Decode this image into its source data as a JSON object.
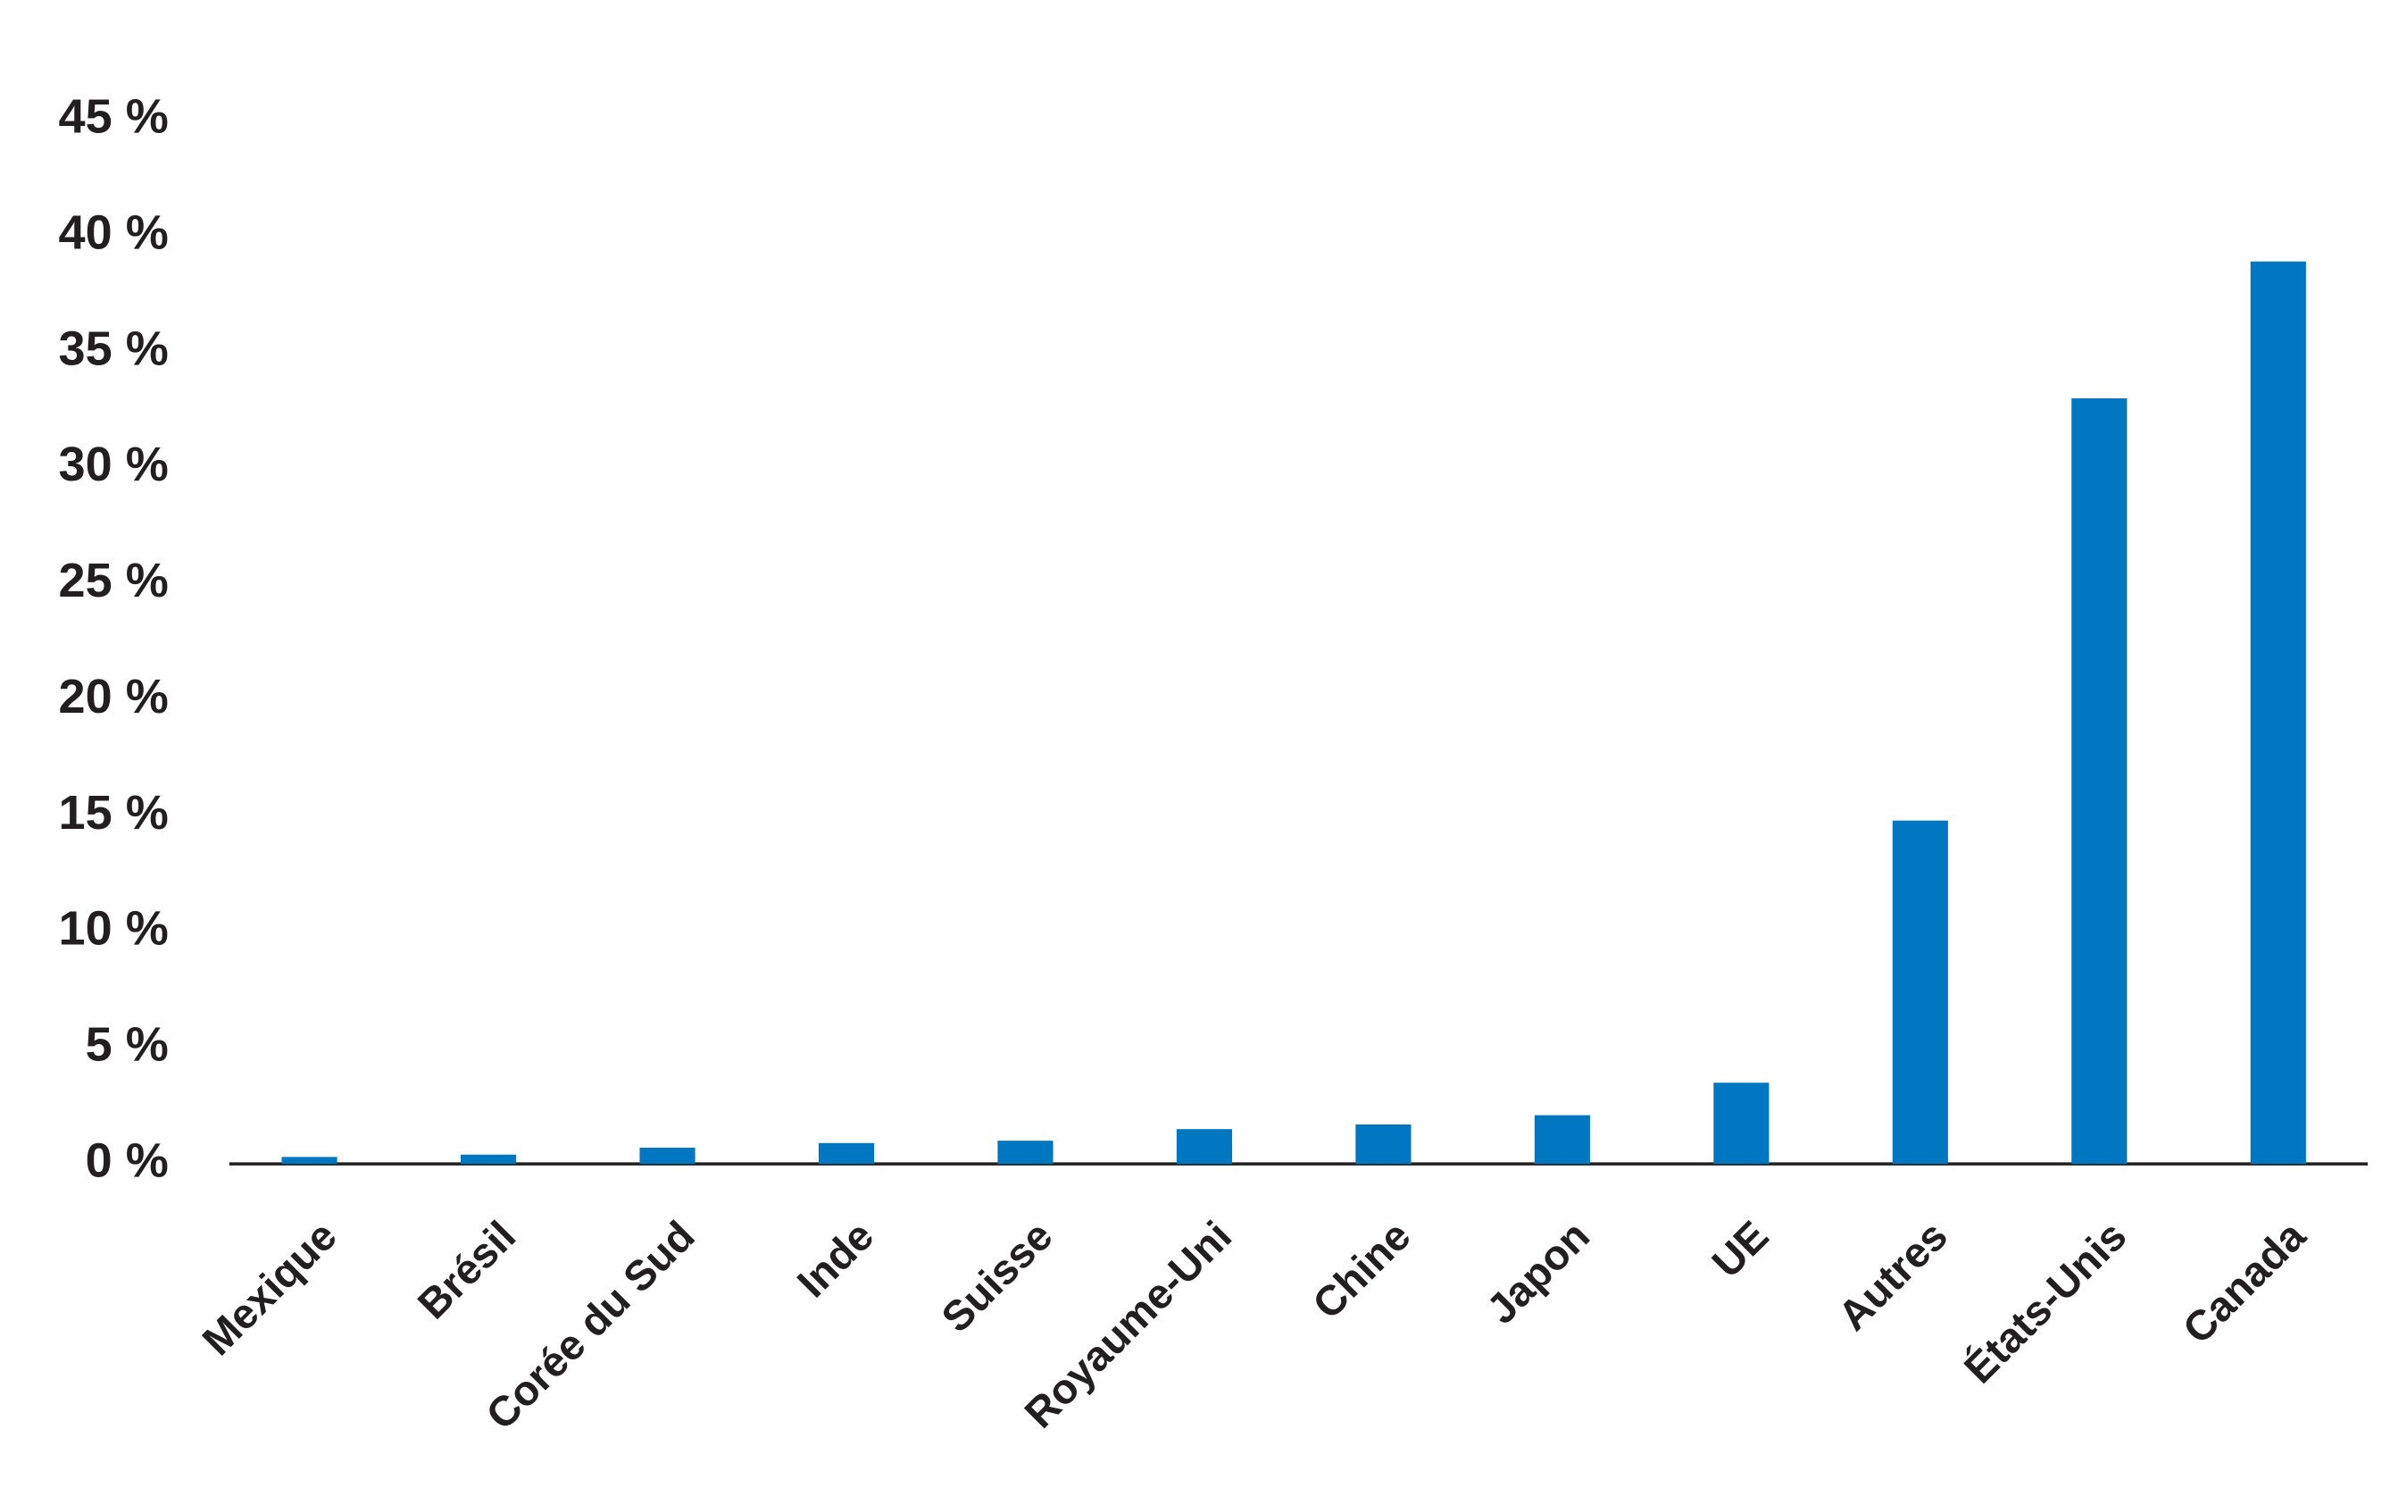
{
  "chart_data": {
    "type": "bar",
    "categories": [
      "Mexique",
      "Brésil",
      "Corée du Sud",
      "Inde",
      "Suisse",
      "Royaume-Uni",
      "Chine",
      "Japon",
      "UE",
      "Autres",
      "États-Unis",
      "Canada"
    ],
    "values": [
      0.3,
      0.4,
      0.7,
      0.9,
      1.0,
      1.5,
      1.7,
      2.1,
      3.5,
      14.8,
      33.0,
      38.9
    ],
    "color": "#0077c0",
    "ylim": [
      0,
      45
    ],
    "yticks": [
      {
        "value": 0,
        "label": "0 %"
      },
      {
        "value": 5,
        "label": "5 %"
      },
      {
        "value": 10,
        "label": "10 %"
      },
      {
        "value": 15,
        "label": "15 %"
      },
      {
        "value": 20,
        "label": "20 %"
      },
      {
        "value": 25,
        "label": "25 %"
      },
      {
        "value": 30,
        "label": "30 %"
      },
      {
        "value": 35,
        "label": "35 %"
      },
      {
        "value": 40,
        "label": "40 %"
      },
      {
        "value": 45,
        "label": "45 %"
      }
    ],
    "grid": false
  }
}
